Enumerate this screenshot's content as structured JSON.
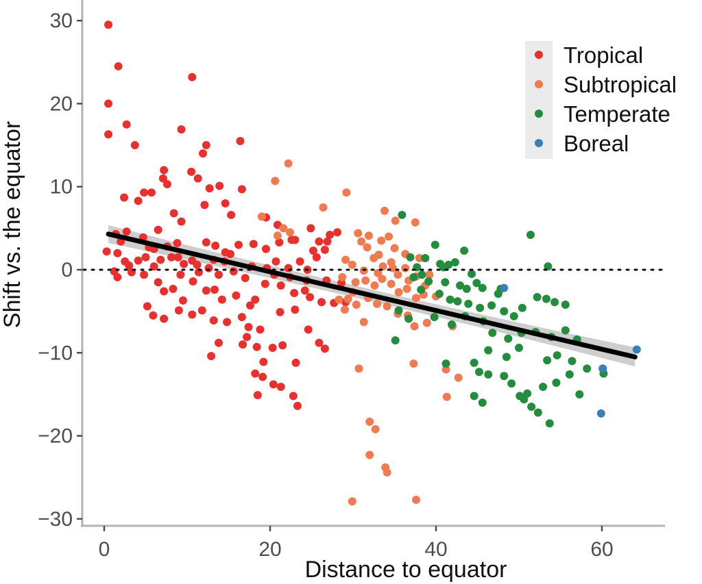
{
  "chart_data": {
    "type": "scatter",
    "title": "",
    "xlabel": "Distance to equator",
    "ylabel": "Shift vs. the equator",
    "xlim": [
      -1.5,
      68
    ],
    "ylim": [
      -31,
      31
    ],
    "xticks": [
      0,
      20,
      40,
      60
    ],
    "yticks": [
      30,
      20,
      10,
      0,
      -10,
      -20,
      -30
    ],
    "xtick_labels": [
      "0",
      "20",
      "40",
      "60"
    ],
    "ytick_labels": [
      "30",
      "20",
      "10",
      "0",
      "−10",
      "−20",
      "−30"
    ],
    "grid": false,
    "legend_position": "top-right",
    "reference_line": {
      "y": 0,
      "style": "dotted"
    },
    "trend_line": {
      "x": [
        0.5,
        64
      ],
      "y": [
        4.3,
        -10.5
      ],
      "confidence_band": true
    },
    "series": [
      {
        "name": "Tropical",
        "color": "#e8312f",
        "points": [
          [
            0.5,
            29.5
          ],
          [
            0.5,
            20
          ],
          [
            0.5,
            16.3
          ],
          [
            1.7,
            24.5
          ],
          [
            2.7,
            17.5
          ],
          [
            3.7,
            15
          ],
          [
            10.6,
            23.2
          ],
          [
            9.3,
            16.9
          ],
          [
            12.3,
            15
          ],
          [
            16.4,
            15.5
          ],
          [
            11.9,
            14
          ],
          [
            7.2,
            12
          ],
          [
            7.1,
            11
          ],
          [
            11.3,
            11
          ],
          [
            4.1,
            8.3
          ],
          [
            4.8,
            9.3
          ],
          [
            5.7,
            9.3
          ],
          [
            7.6,
            10.3
          ],
          [
            10.5,
            11.8
          ],
          [
            12.7,
            9.8
          ],
          [
            13.9,
            10.1
          ],
          [
            2.4,
            8.7
          ],
          [
            16.6,
            9.7
          ],
          [
            8.4,
            6.8
          ],
          [
            9.3,
            5.8
          ],
          [
            12.1,
            7.8
          ],
          [
            14.6,
            8.0
          ],
          [
            15.3,
            6.6
          ],
          [
            19.5,
            6.3
          ],
          [
            20.9,
            5.4
          ],
          [
            24.9,
            5.0
          ],
          [
            22.6,
            3.6
          ],
          [
            26.6,
            2.4
          ],
          [
            27.2,
            4.2
          ],
          [
            28.1,
            4.5
          ],
          [
            2.7,
            4.6
          ],
          [
            1.4,
            4.3
          ],
          [
            4.7,
            3.9
          ],
          [
            7.6,
            2.8
          ],
          [
            6.5,
            4.8
          ],
          [
            8.8,
            3.2
          ],
          [
            12.3,
            3.3
          ],
          [
            13.4,
            2.9
          ],
          [
            14.6,
            2.1
          ],
          [
            16.2,
            3.0
          ],
          [
            18.0,
            3.1
          ],
          [
            19.5,
            2.5
          ],
          [
            21.1,
            3.3
          ],
          [
            23.0,
            3.6
          ],
          [
            25.2,
            2.3
          ],
          [
            25.9,
            3.4
          ],
          [
            26.9,
            3.4
          ],
          [
            0.3,
            2.2
          ],
          [
            1.6,
            2.0
          ],
          [
            2.5,
            1.0
          ],
          [
            4.1,
            1.1
          ],
          [
            5.0,
            1.5
          ],
          [
            6.0,
            0.4
          ],
          [
            6.8,
            1.2
          ],
          [
            8.1,
            1.5
          ],
          [
            9.6,
            0.7
          ],
          [
            10.6,
            1.1
          ],
          [
            11.2,
            0.6
          ],
          [
            12.6,
            0.2
          ],
          [
            13.2,
            1.2
          ],
          [
            14.5,
            1.0
          ],
          [
            15.6,
            -0.2
          ],
          [
            17.8,
            0.4
          ],
          [
            19.6,
            0.2
          ],
          [
            20.7,
            1.0
          ],
          [
            22.2,
            0.2
          ],
          [
            23.6,
            1.0
          ],
          [
            24.5,
            0.0
          ],
          [
            25.6,
            1.5
          ],
          [
            1.6,
            -0.9
          ],
          [
            3.3,
            -0.3
          ],
          [
            4.8,
            -0.6
          ],
          [
            6.5,
            -1.5
          ],
          [
            7.2,
            -2.6
          ],
          [
            8.3,
            -2.3
          ],
          [
            9.5,
            -3.7
          ],
          [
            10.7,
            -1.4
          ],
          [
            12.3,
            -2.5
          ],
          [
            13.3,
            -2.4
          ],
          [
            14.2,
            -3.6
          ],
          [
            15.9,
            -3.1
          ],
          [
            17.6,
            -4.3
          ],
          [
            18.2,
            -3.6
          ],
          [
            19.4,
            -1.7
          ],
          [
            21.3,
            -1.9
          ],
          [
            22.9,
            -2.8
          ],
          [
            24.2,
            -2.5
          ],
          [
            24.8,
            -3.3
          ],
          [
            26.2,
            -3.9
          ],
          [
            27.7,
            -4.0
          ],
          [
            29.1,
            -3.9
          ],
          [
            5.2,
            -4.4
          ],
          [
            5.9,
            -5.5
          ],
          [
            7.2,
            -5.9
          ],
          [
            9.0,
            -4.9
          ],
          [
            10.6,
            -5.4
          ],
          [
            11.8,
            -4.9
          ],
          [
            13.2,
            -6.1
          ],
          [
            14.8,
            -6.3
          ],
          [
            16.6,
            -5.7
          ],
          [
            17.4,
            -6.9
          ],
          [
            18.8,
            -7.2
          ],
          [
            21.2,
            -5.1
          ],
          [
            23.0,
            -4.8
          ],
          [
            24.6,
            -7.2
          ],
          [
            25.9,
            -8.8
          ],
          [
            26.6,
            -9.5
          ],
          [
            12.9,
            -10.4
          ],
          [
            13.8,
            -8.8
          ],
          [
            16.7,
            -9.0
          ],
          [
            17.2,
            -8.1
          ],
          [
            18.4,
            -9.3
          ],
          [
            19.2,
            -11.1
          ],
          [
            20.3,
            -9.4
          ],
          [
            21.5,
            -9.1
          ],
          [
            23.1,
            -11.2
          ],
          [
            18.2,
            -12.5
          ],
          [
            19.1,
            -12.9
          ],
          [
            20.4,
            -13.8
          ],
          [
            21.3,
            -14.1
          ],
          [
            18.5,
            -15.1
          ],
          [
            22.8,
            -15.2
          ],
          [
            23.3,
            -16.4
          ],
          [
            1.2,
            -0.2
          ],
          [
            3.0,
            0.5
          ],
          [
            6.0,
            2.5
          ],
          [
            8.9,
            1.5
          ],
          [
            11.4,
            -0.3
          ],
          [
            13.8,
            -0.6
          ],
          [
            15.2,
            1.9
          ],
          [
            17.0,
            -1.0
          ],
          [
            20.5,
            -0.6
          ],
          [
            22.4,
            -0.9
          ],
          [
            24.4,
            -1.3
          ],
          [
            26.8,
            -1.3
          ],
          [
            28.6,
            -1.6
          ],
          [
            2.0,
            3.4
          ],
          [
            5.4,
            2.7
          ],
          [
            9.2,
            -0.6
          ]
        ]
      },
      {
        "name": "Subtropical",
        "color": "#f07b50",
        "points": [
          [
            22.2,
            12.8
          ],
          [
            20.6,
            10.7
          ],
          [
            29.2,
            9.3
          ],
          [
            26.4,
            7.5
          ],
          [
            19.0,
            6.4
          ],
          [
            33.8,
            7.1
          ],
          [
            35.1,
            5.9
          ],
          [
            37.5,
            5.7
          ],
          [
            21.6,
            5.0
          ],
          [
            22.4,
            4.5
          ],
          [
            20.9,
            4.1
          ],
          [
            30.6,
            4.4
          ],
          [
            31.0,
            3.4
          ],
          [
            31.9,
            4.1
          ],
          [
            33.4,
            3.5
          ],
          [
            34.3,
            4.0
          ],
          [
            35.0,
            2.6
          ],
          [
            36.3,
            1.9
          ],
          [
            38.0,
            1.4
          ],
          [
            29.1,
            1.2
          ],
          [
            29.9,
            0.6
          ],
          [
            31.3,
            -0.1
          ],
          [
            32.5,
            1.4
          ],
          [
            33.6,
            0.4
          ],
          [
            34.6,
            0.9
          ],
          [
            35.4,
            -0.6
          ],
          [
            36.3,
            0.2
          ],
          [
            37.6,
            -0.8
          ],
          [
            39.2,
            -0.6
          ],
          [
            28.7,
            -0.9
          ],
          [
            30.3,
            -1.5
          ],
          [
            31.5,
            -1.3
          ],
          [
            32.6,
            -1.9
          ],
          [
            33.5,
            -1.1
          ],
          [
            34.6,
            -1.7
          ],
          [
            35.5,
            -2.7
          ],
          [
            36.5,
            -2.3
          ],
          [
            37.6,
            -3.4
          ],
          [
            38.5,
            -3.0
          ],
          [
            40.0,
            -3.2
          ],
          [
            28.3,
            -3.6
          ],
          [
            29.4,
            -3.5
          ],
          [
            30.4,
            -4.2
          ],
          [
            31.8,
            -3.4
          ],
          [
            32.9,
            -4.1
          ],
          [
            34.1,
            -4.4
          ],
          [
            35.4,
            -5.3
          ],
          [
            36.6,
            -5.5
          ],
          [
            37.4,
            -6.8
          ],
          [
            38.9,
            -6.4
          ],
          [
            42.0,
            -6.8
          ],
          [
            31.3,
            -6.3
          ],
          [
            37.3,
            -11.3
          ],
          [
            30.7,
            -11.9
          ],
          [
            41.2,
            -12.0
          ],
          [
            42.7,
            -13.0
          ],
          [
            41.3,
            -15.3
          ],
          [
            32.0,
            -18.3
          ],
          [
            32.7,
            -19.2
          ],
          [
            32.0,
            -22.3
          ],
          [
            33.9,
            -23.8
          ],
          [
            34.1,
            -24.4
          ],
          [
            29.9,
            -27.9
          ],
          [
            37.6,
            -27.7
          ],
          [
            33.0,
            -0.4
          ],
          [
            34.8,
            0.2
          ],
          [
            36.7,
            -1.3
          ],
          [
            38.7,
            -1.9
          ],
          [
            31.7,
            2.7
          ],
          [
            33.1,
            1.8
          ],
          [
            30.0,
            -2.7
          ],
          [
            29.0,
            -4.8
          ]
        ]
      },
      {
        "name": "Temperate",
        "color": "#248d3d",
        "points": [
          [
            35.9,
            6.6
          ],
          [
            39.9,
            3.0
          ],
          [
            38.7,
            1.4
          ],
          [
            43.4,
            2.3
          ],
          [
            41.5,
            0.6
          ],
          [
            36.9,
            1.5
          ],
          [
            37.7,
            0.3
          ],
          [
            40.5,
            0.7
          ],
          [
            42.3,
            0.9
          ],
          [
            44.3,
            -0.5
          ],
          [
            37.3,
            -0.9
          ],
          [
            38.3,
            -0.6
          ],
          [
            39.1,
            -1.4
          ],
          [
            41.1,
            -1.5
          ],
          [
            42.9,
            -1.9
          ],
          [
            43.7,
            -2.3
          ],
          [
            45.6,
            -2.2
          ],
          [
            47.5,
            -2.9
          ],
          [
            40.4,
            -2.9
          ],
          [
            41.7,
            -3.6
          ],
          [
            42.6,
            -3.8
          ],
          [
            43.9,
            -4.1
          ],
          [
            45.3,
            -4.6
          ],
          [
            46.7,
            -4.3
          ],
          [
            48.2,
            -5.0
          ],
          [
            49.4,
            -5.6
          ],
          [
            50.4,
            -4.6
          ],
          [
            52.2,
            -3.3
          ],
          [
            53.3,
            -3.5
          ],
          [
            54.3,
            -3.9
          ],
          [
            55.6,
            -4.2
          ],
          [
            35.5,
            -4.9
          ],
          [
            36.7,
            -5.9
          ],
          [
            39.8,
            -5.7
          ],
          [
            41.9,
            -6.6
          ],
          [
            43.5,
            -5.6
          ],
          [
            45.7,
            -6.2
          ],
          [
            46.8,
            -7.6
          ],
          [
            48.7,
            -8.3
          ],
          [
            50.3,
            -7.6
          ],
          [
            52.0,
            -7.5
          ],
          [
            53.9,
            -8.1
          ],
          [
            55.6,
            -7.3
          ],
          [
            57.0,
            -8.4
          ],
          [
            35.1,
            -8.5
          ],
          [
            46.3,
            -9.7
          ],
          [
            48.5,
            -10.5
          ],
          [
            50.0,
            -9.4
          ],
          [
            53.4,
            -10.9
          ],
          [
            54.6,
            -10.3
          ],
          [
            56.4,
            -11.0
          ],
          [
            58.2,
            -11.9
          ],
          [
            41.2,
            -11.3
          ],
          [
            44.6,
            -11.2
          ],
          [
            45.2,
            -12.3
          ],
          [
            46.3,
            -12.6
          ],
          [
            48.2,
            -12.8
          ],
          [
            49.1,
            -13.7
          ],
          [
            51.0,
            -14.9
          ],
          [
            52.9,
            -14.1
          ],
          [
            54.5,
            -13.6
          ],
          [
            56.1,
            -12.6
          ],
          [
            57.3,
            -15.0
          ],
          [
            44.6,
            -15.2
          ],
          [
            45.6,
            -16.0
          ],
          [
            50.1,
            -15.2
          ],
          [
            50.6,
            -15.6
          ],
          [
            51.5,
            -16.5
          ],
          [
            52.3,
            -17.2
          ],
          [
            53.7,
            -18.5
          ],
          [
            51.4,
            4.2
          ],
          [
            53.5,
            0.4
          ],
          [
            60.1,
            -11.9
          ],
          [
            60.2,
            -12.5
          ],
          [
            47.8,
            -2.3
          ],
          [
            38.2,
            -2.4
          ],
          [
            40.9,
            0.3
          ],
          [
            44.9,
            -1.6
          ]
        ]
      },
      {
        "name": "Boreal",
        "color": "#3b7fb7",
        "points": [
          [
            48.2,
            -2.2
          ],
          [
            64.2,
            -9.6
          ],
          [
            60.1,
            -11.9
          ],
          [
            59.9,
            -17.3
          ]
        ]
      }
    ]
  }
}
